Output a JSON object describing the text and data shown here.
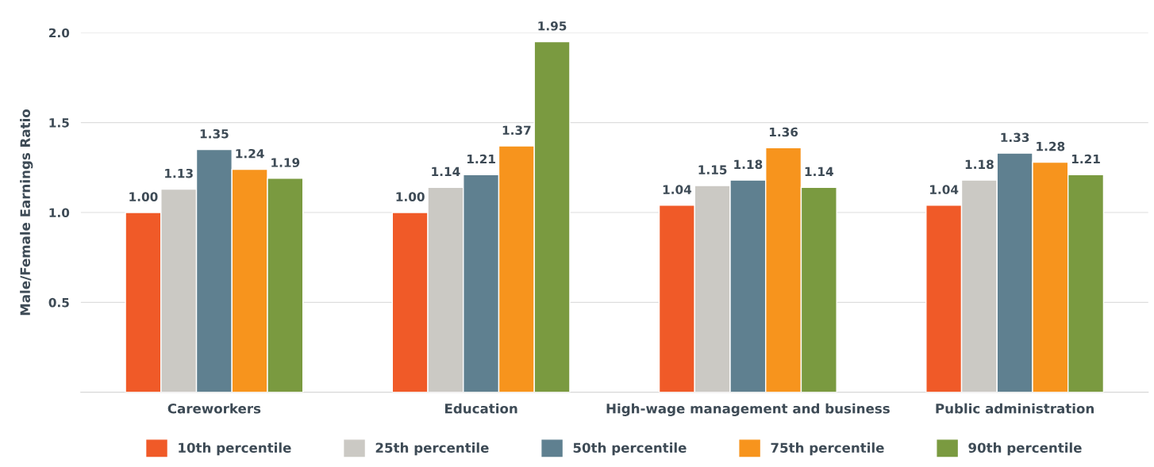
{
  "chart_data": {
    "type": "bar",
    "ylabel": "Male/Female Earnings Ratio",
    "categories": [
      "Careworkers",
      "Education",
      "High-wage management and business",
      "Public administration"
    ],
    "series": [
      {
        "name": "10th percentile",
        "color": "#f05a28",
        "values": [
          1.0,
          1.0,
          1.04,
          1.04
        ],
        "value_labels": [
          "1.00",
          "1.00",
          "1.04",
          "1.04"
        ]
      },
      {
        "name": "25th percentile",
        "color": "#cbc9c4",
        "values": [
          1.13,
          1.14,
          1.15,
          1.18
        ],
        "value_labels": [
          "1.13",
          "1.14",
          "1.15",
          "1.18"
        ]
      },
      {
        "name": "50th percentile",
        "color": "#5f8090",
        "values": [
          1.35,
          1.21,
          1.18,
          1.33
        ],
        "value_labels": [
          "1.35",
          "1.21",
          "1.18",
          "1.33"
        ]
      },
      {
        "name": "75th percentile",
        "color": "#f7941d",
        "values": [
          1.24,
          1.37,
          1.36,
          1.28
        ],
        "value_labels": [
          "1.24",
          "1.37",
          "1.36",
          "1.28"
        ]
      },
      {
        "name": "90th percentile",
        "color": "#7a9a40",
        "values": [
          1.19,
          1.95,
          1.14,
          1.21
        ],
        "value_labels": [
          "1.19",
          "1.95",
          "1.14",
          "1.21"
        ]
      }
    ],
    "ylim": [
      0,
      2.0
    ],
    "yticks": [
      {
        "value": 0.5,
        "label": "0.5"
      },
      {
        "value": 1.0,
        "label": "1.0"
      },
      {
        "value": 1.5,
        "label": "1.5"
      },
      {
        "value": 2.0,
        "label": "2.0"
      }
    ],
    "grid": "y",
    "legend": "bottom"
  }
}
